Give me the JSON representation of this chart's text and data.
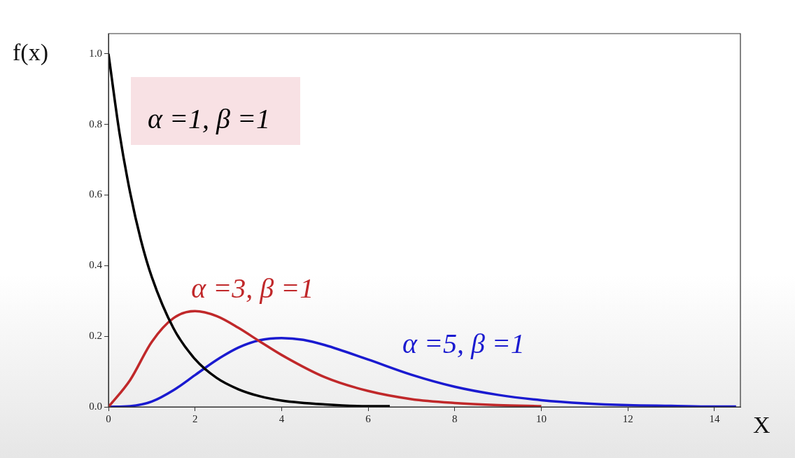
{
  "chart_data": {
    "type": "line",
    "xlabel": "X",
    "ylabel": "f(x)",
    "xlim": [
      0,
      14.6
    ],
    "xticks": [
      0,
      2,
      4,
      6,
      8,
      10,
      12,
      14
    ],
    "ylim": [
      0,
      1.057
    ],
    "yticks": [
      {
        "value": 0,
        "label": "0.0"
      },
      {
        "value": 0.2,
        "label": "0.2"
      },
      {
        "value": 0.4,
        "label": "0.4"
      },
      {
        "value": 0.6,
        "label": "0.6"
      },
      {
        "value": 0.8,
        "label": "0.8"
      },
      {
        "value": 1,
        "label": "1.0"
      }
    ],
    "grid": false,
    "legend": false,
    "marker": "none",
    "line_style": "solid",
    "series": [
      {
        "name": "α =1, β =1",
        "color": "#000000",
        "x": [
          0,
          0.25,
          0.5,
          0.75,
          1,
          1.5,
          2,
          2.5,
          3,
          3.5,
          4,
          5,
          6,
          6.5
        ],
        "values": [
          1,
          0.779,
          0.607,
          0.472,
          0.368,
          0.223,
          0.135,
          0.082,
          0.05,
          0.03,
          0.018,
          0.007,
          0.002,
          0.002
        ]
      },
      {
        "name": "α =3, β =1",
        "color": "#c0282a",
        "x": [
          0,
          0.5,
          1,
          1.5,
          2,
          2.5,
          3,
          3.5,
          4,
          5,
          6,
          7,
          8,
          9,
          10
        ],
        "values": [
          0,
          0.076,
          0.184,
          0.251,
          0.271,
          0.257,
          0.224,
          0.185,
          0.147,
          0.084,
          0.045,
          0.022,
          0.011,
          0.005,
          0.002
        ]
      },
      {
        "name": "α =5, β =1",
        "color": "#1a1ad0",
        "x": [
          0,
          0.5,
          1,
          1.5,
          2,
          2.5,
          3,
          3.5,
          4,
          4.5,
          5,
          6,
          7,
          8,
          9,
          10,
          11,
          12,
          13,
          14,
          14.5
        ],
        "values": [
          0,
          0.002,
          0.015,
          0.047,
          0.09,
          0.133,
          0.168,
          0.189,
          0.195,
          0.19,
          0.175,
          0.134,
          0.091,
          0.057,
          0.034,
          0.019,
          0.01,
          0.005,
          0.003,
          0.001,
          0.001
        ]
      }
    ]
  }
}
